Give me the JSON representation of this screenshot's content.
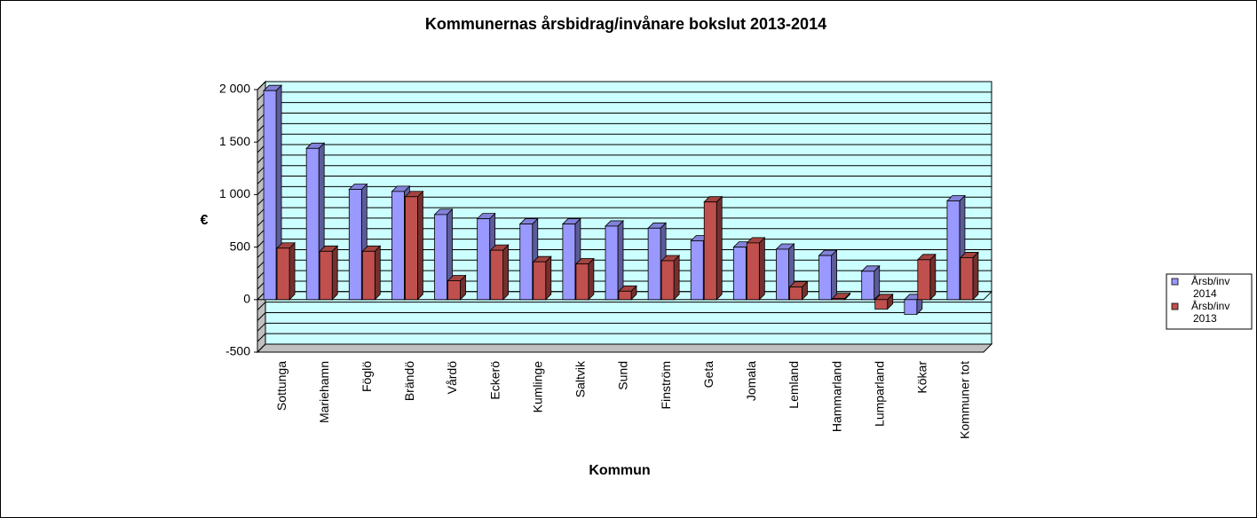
{
  "chart_data": {
    "type": "bar3d",
    "title": "Kommunernas årsbidrag/invånare  bokslut  2013-2014",
    "x_label": "Kommun",
    "y_label": "€",
    "categories": [
      "Sottunga",
      "Mariehamn",
      "Föglö",
      "Brändö",
      "Vårdö",
      "Eckerö",
      "Kumlinge",
      "Saltvik",
      "Sund",
      "Finström",
      "Geta",
      "Jomala",
      "Lemland",
      "Hammarland",
      "Lumparland",
      "Kökar",
      "Kommuner tot"
    ],
    "series": [
      {
        "name": "Årsb/inv 2014",
        "color": "#9999ff",
        "values": [
          1990,
          1440,
          1050,
          1030,
          810,
          770,
          720,
          720,
          700,
          680,
          560,
          500,
          480,
          420,
          270,
          -140,
          940
        ]
      },
      {
        "name": "Årsb/inv 2013",
        "color": "#c0504d",
        "values": [
          490,
          460,
          460,
          980,
          180,
          470,
          360,
          340,
          80,
          370,
          930,
          540,
          120,
          10,
          -90,
          380,
          400
        ]
      }
    ],
    "ylim": [
      -500,
      2000
    ],
    "yticks": [
      {
        "value": -500,
        "label": "-500"
      },
      0,
      500,
      {
        "value": 1000,
        "label": "1 000"
      },
      {
        "value": 1500,
        "label": "1 500"
      },
      {
        "value": 2000,
        "label": "2 000"
      }
    ],
    "grid_step": 100,
    "grid": true,
    "legend": "right"
  }
}
